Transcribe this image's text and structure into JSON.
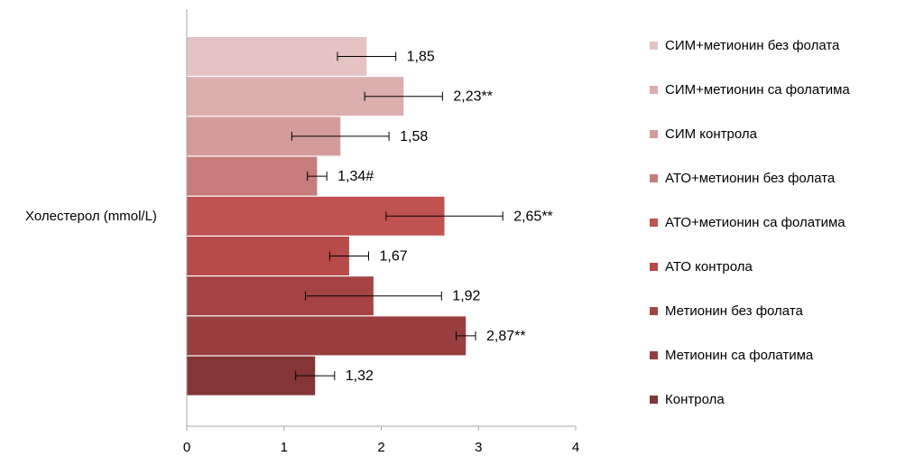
{
  "chart_data": {
    "type": "bar",
    "orientation": "horizontal",
    "ylabel": "Холестерол (mmol/L)",
    "xlim": [
      0,
      4
    ],
    "x_ticks": [
      "0",
      "1",
      "2",
      "3",
      "4"
    ],
    "legend_position": "right",
    "series": [
      {
        "name": "СИМ+метионин без фолата",
        "value": 1.85,
        "error": 0.3,
        "label": "1,85",
        "color": "#e6c3c3"
      },
      {
        "name": "СИМ+метионин са фолатима",
        "value": 2.23,
        "error": 0.4,
        "label": "2,23**",
        "color": "#dcaeae"
      },
      {
        "name": "СИМ контрола",
        "value": 1.58,
        "error": 0.5,
        "label": "1,58",
        "color": "#d49b9b"
      },
      {
        "name": "АТО+метионин без фолата",
        "value": 1.34,
        "error": 0.1,
        "label": "1,34#",
        "color": "#c87c7c"
      },
      {
        "name": "АТО+метионин са фолатима",
        "value": 2.65,
        "error": 0.6,
        "label": "2,65**",
        "color": "#c15252"
      },
      {
        "name": "АТО контрола",
        "value": 1.67,
        "error": 0.2,
        "label": "1,67",
        "color": "#b84a4a"
      },
      {
        "name": "Метионин без фолата",
        "value": 1.92,
        "error": 0.7,
        "label": "1,92",
        "color": "#a54343"
      },
      {
        "name": "Метионин са фолатима",
        "value": 2.87,
        "error": 0.1,
        "label": "2,87**",
        "color": "#983e3e"
      },
      {
        "name": "Контрола",
        "value": 1.32,
        "error": 0.2,
        "label": "1,32",
        "color": "#843535"
      }
    ]
  }
}
